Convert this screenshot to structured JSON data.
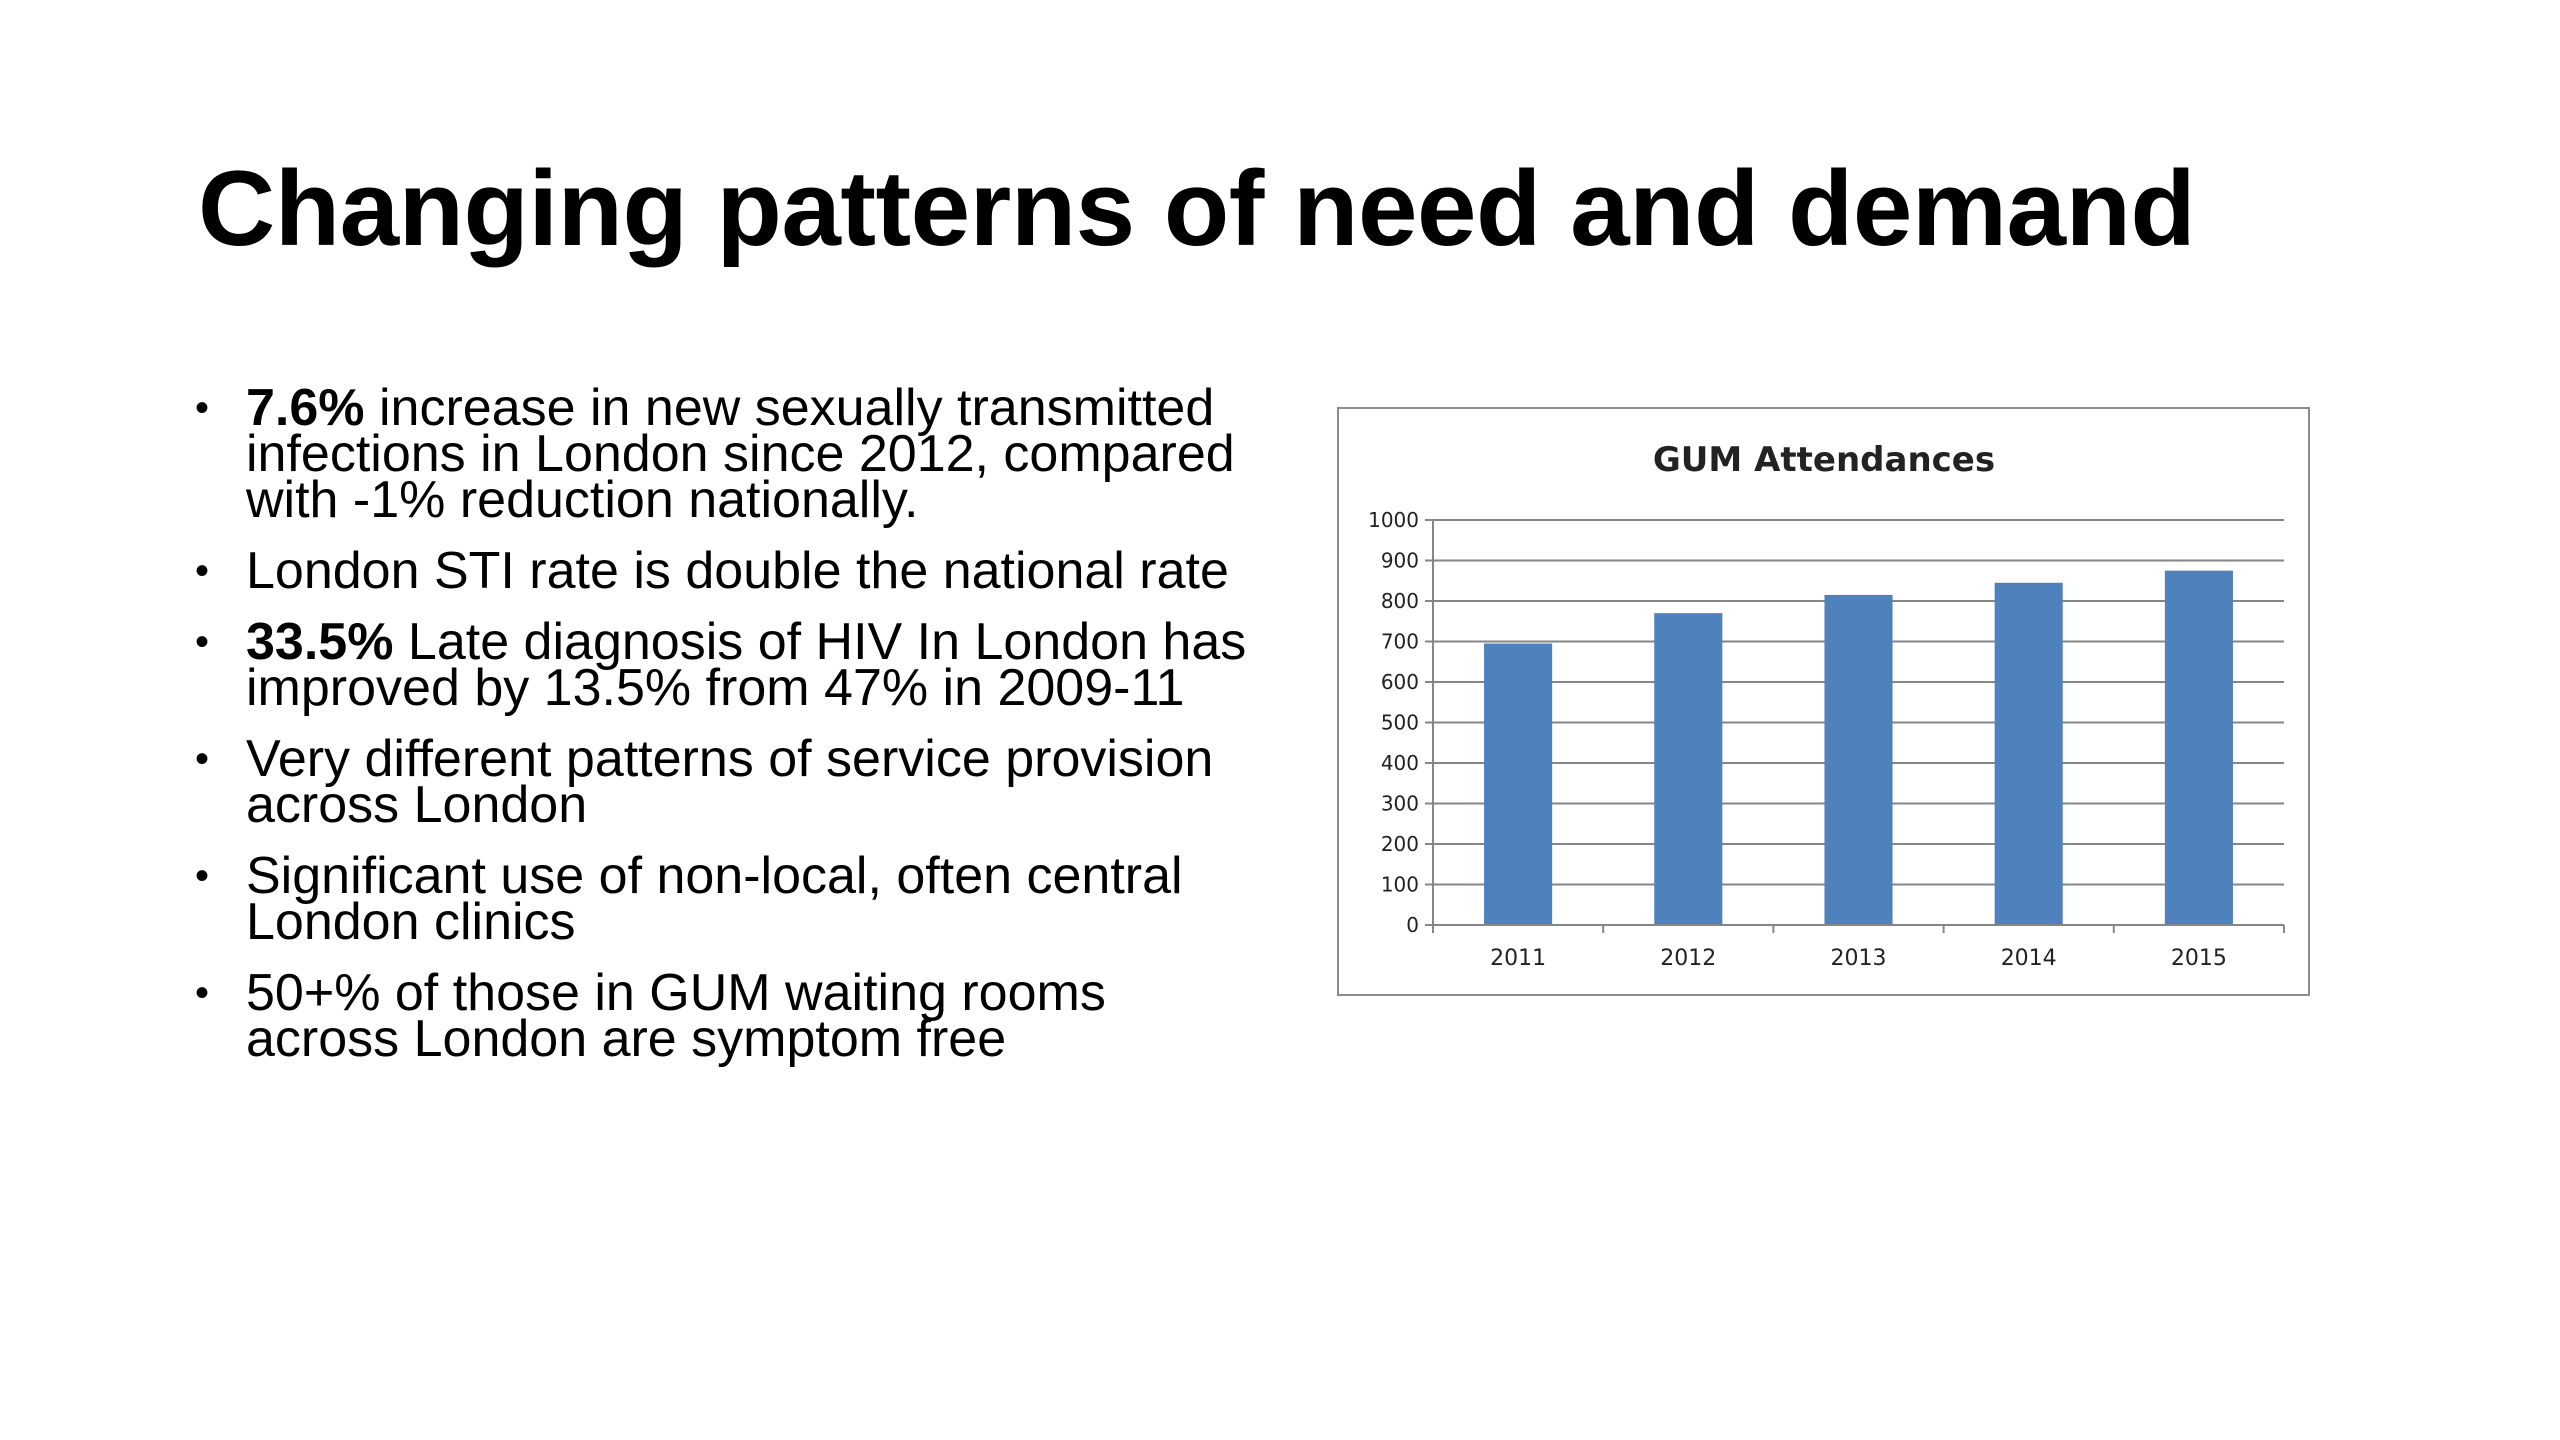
{
  "slide": {
    "title": "Changing patterns of need and demand",
    "bullets": [
      {
        "bold": "7.6%",
        "text": "  increase in new sexually transmitted infections in London since 2012, compared with -1% reduction nationally."
      },
      {
        "bold": "",
        "text": "London STI rate is double the national rate"
      },
      {
        "bold": "33.5%",
        "text": "  Late diagnosis of HIV In London has improved by 13.5% from 47% in 2009-11"
      },
      {
        "bold": "",
        "text": "Very different patterns of service provision across London"
      },
      {
        "bold": "",
        "text": "Significant use of non-local, often central London clinics"
      },
      {
        "bold": "",
        "text": "50+% of those in GUM waiting rooms across London are symptom free"
      }
    ]
  },
  "chart_data": {
    "type": "bar",
    "title": "GUM Attendances",
    "xlabel": "",
    "ylabel": "",
    "categories": [
      "2011",
      "2012",
      "2013",
      "2014",
      "2015"
    ],
    "values": [
      695,
      770,
      815,
      845,
      875
    ],
    "ylim": [
      0,
      1000
    ],
    "yticks": [
      0,
      100,
      200,
      300,
      400,
      500,
      600,
      700,
      800,
      900,
      1000
    ],
    "grid": true,
    "legend": "none",
    "bar_color": "#4f81bd",
    "grid_color": "#868686"
  }
}
